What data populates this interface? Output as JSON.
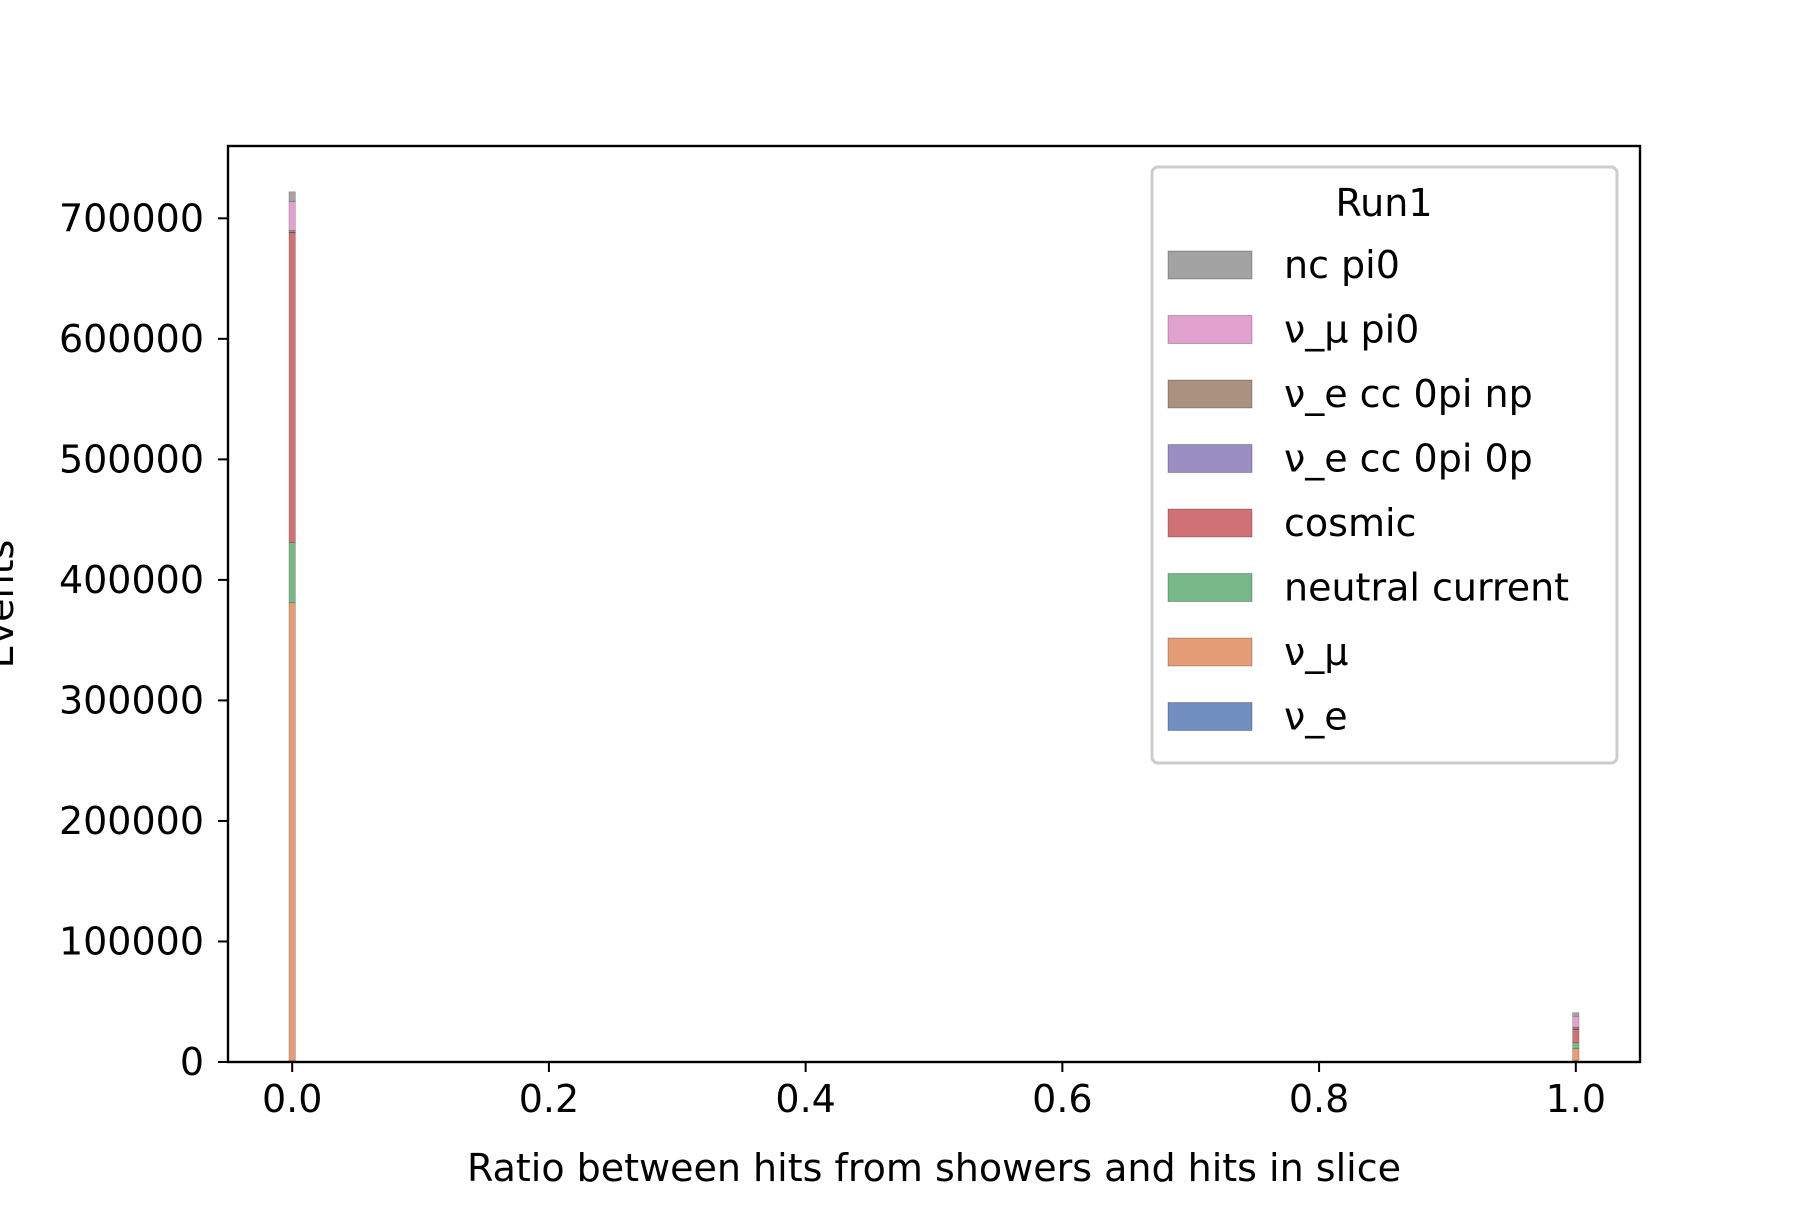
{
  "chart_data": {
    "type": "bar",
    "stacked": true,
    "xlabel": "Ratio between hits from showers and hits in slice",
    "ylabel": "Events",
    "xlim": [
      -0.05,
      1.05
    ],
    "ylim": [
      0,
      760000
    ],
    "xticks": [
      0.0,
      0.2,
      0.4,
      0.6,
      0.8,
      1.0
    ],
    "xtick_labels": [
      "0.0",
      "0.2",
      "0.4",
      "0.6",
      "0.8",
      "1.0"
    ],
    "yticks": [
      0,
      100000,
      200000,
      300000,
      400000,
      500000,
      600000,
      700000
    ],
    "ytick_labels": [
      "0",
      "100000",
      "200000",
      "300000",
      "400000",
      "500000",
      "600000",
      "700000"
    ],
    "bin_width": 0.005,
    "x": [
      0.0,
      1.0
    ],
    "series": [
      {
        "name": "ν_e",
        "color": "#4c72b0",
        "values": [
          1000,
          1000
        ]
      },
      {
        "name": "ν_μ",
        "color": "#dd8452",
        "values": [
          380000,
          10000
        ]
      },
      {
        "name": "neutral current",
        "color": "#55a868",
        "values": [
          50000,
          5000
        ]
      },
      {
        "name": "cosmic",
        "color": "#c44e52",
        "values": [
          257000,
          11000
        ]
      },
      {
        "name": "ν_e cc 0pi 0p",
        "color": "#8172b3",
        "values": [
          500,
          500
        ]
      },
      {
        "name": "ν_e cc 0pi np",
        "color": "#937860",
        "values": [
          1500,
          1500
        ]
      },
      {
        "name": "ν_μ pi0",
        "color": "#da8bc3",
        "values": [
          24000,
          9000
        ]
      },
      {
        "name": "nc pi0",
        "color": "#8c8c8c",
        "values": [
          8000,
          3000
        ]
      }
    ],
    "legend": {
      "title": "Run1",
      "placement": "upper right",
      "entries": [
        {
          "label": "nc pi0",
          "color": "#8c8c8c"
        },
        {
          "label": "ν_μ pi0",
          "color": "#da8bc3"
        },
        {
          "label": "ν_e cc 0pi np",
          "color": "#937860"
        },
        {
          "label": "ν_e cc 0pi 0p",
          "color": "#8172b3"
        },
        {
          "label": "cosmic",
          "color": "#c44e52"
        },
        {
          "label": "neutral current",
          "color": "#55a868"
        },
        {
          "label": "ν_μ",
          "color": "#dd8452"
        },
        {
          "label": "ν_e",
          "color": "#4c72b0"
        }
      ]
    }
  }
}
